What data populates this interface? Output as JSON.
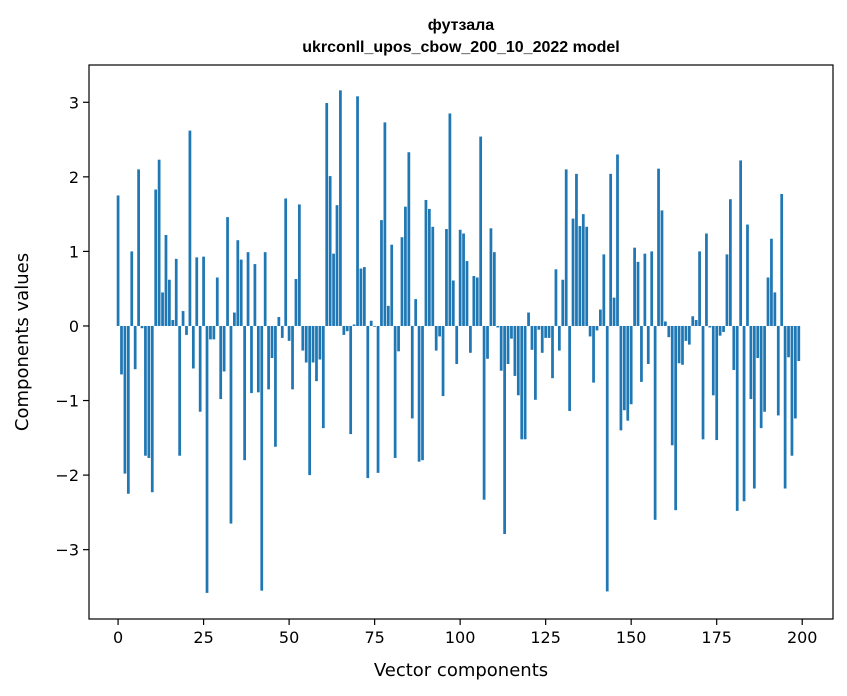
{
  "chart_data": {
    "type": "bar",
    "title_line1": "футзала",
    "title_line2": "ukrconll_upos_cbow_200_10_2022 model",
    "xlabel": "Vector components",
    "ylabel": "Components values",
    "xlim": [
      -8.5,
      209
    ],
    "ylim": [
      -3.93,
      3.5
    ],
    "xticks": [
      0,
      25,
      50,
      75,
      100,
      125,
      150,
      175,
      200
    ],
    "yticks": [
      -3,
      -2,
      -1,
      0,
      1,
      2,
      3
    ],
    "bar_color": "#1f77b4",
    "grid": false,
    "legend": "none",
    "x": [
      0,
      1,
      2,
      3,
      4,
      5,
      6,
      7,
      8,
      9,
      10,
      11,
      12,
      13,
      14,
      15,
      16,
      17,
      18,
      19,
      20,
      21,
      22,
      23,
      24,
      25,
      26,
      27,
      28,
      29,
      30,
      31,
      32,
      33,
      34,
      35,
      36,
      37,
      38,
      39,
      40,
      41,
      42,
      43,
      44,
      45,
      46,
      47,
      48,
      49,
      50,
      51,
      52,
      53,
      54,
      55,
      56,
      57,
      58,
      59,
      60,
      61,
      62,
      63,
      64,
      65,
      66,
      67,
      68,
      69,
      70,
      71,
      72,
      73,
      74,
      75,
      76,
      77,
      78,
      79,
      80,
      81,
      82,
      83,
      84,
      85,
      86,
      87,
      88,
      89,
      90,
      91,
      92,
      93,
      94,
      95,
      96,
      97,
      98,
      99,
      100,
      101,
      102,
      103,
      104,
      105,
      106,
      107,
      108,
      109,
      110,
      111,
      112,
      113,
      114,
      115,
      116,
      117,
      118,
      119,
      120,
      121,
      122,
      123,
      124,
      125,
      126,
      127,
      128,
      129,
      130,
      131,
      132,
      133,
      134,
      135,
      136,
      137,
      138,
      139,
      140,
      141,
      142,
      143,
      144,
      145,
      146,
      147,
      148,
      149,
      150,
      151,
      152,
      153,
      154,
      155,
      156,
      157,
      158,
      159,
      160,
      161,
      162,
      163,
      164,
      165,
      166,
      167,
      168,
      169,
      170,
      171,
      172,
      173,
      174,
      175,
      176,
      177,
      178,
      179,
      180,
      181,
      182,
      183,
      184,
      185,
      186,
      187,
      188,
      189,
      190,
      191,
      192,
      193,
      194,
      195,
      196,
      197,
      198,
      199
    ],
    "values": [
      1.75,
      -0.65,
      -1.98,
      -2.25,
      1.0,
      -0.58,
      2.1,
      -0.03,
      -1.74,
      -1.77,
      -2.23,
      1.83,
      2.23,
      0.45,
      1.22,
      0.62,
      0.08,
      0.9,
      -1.74,
      0.2,
      -0.12,
      2.62,
      -0.57,
      0.92,
      -1.15,
      0.93,
      -3.58,
      -0.18,
      -0.18,
      0.65,
      -0.98,
      -0.61,
      1.46,
      -2.65,
      0.18,
      1.15,
      0.89,
      -1.8,
      0.99,
      -0.9,
      0.83,
      -0.89,
      -3.55,
      0.99,
      -0.85,
      -0.43,
      -1.62,
      0.12,
      -0.16,
      1.71,
      -0.2,
      -0.85,
      0.63,
      1.63,
      -0.33,
      -0.49,
      -2.0,
      -0.49,
      -0.74,
      -0.45,
      -1.37,
      2.99,
      2.01,
      0.97,
      1.62,
      3.16,
      -0.12,
      -0.07,
      -1.45,
      0.02,
      3.08,
      0.77,
      0.79,
      -2.04,
      0.07,
      -0.01,
      -1.97,
      1.42,
      2.73,
      0.27,
      1.09,
      -1.77,
      -0.34,
      1.19,
      1.6,
      2.33,
      -1.24,
      0.36,
      -1.82,
      -1.8,
      1.69,
      1.57,
      1.33,
      -0.33,
      -0.14,
      -0.94,
      1.3,
      2.85,
      0.61,
      -0.51,
      1.29,
      1.24,
      0.87,
      -0.36,
      0.67,
      0.65,
      2.54,
      -2.33,
      -0.44,
      1.31,
      0.99,
      -0.02,
      -0.6,
      -2.79,
      -0.51,
      -0.17,
      -0.67,
      -0.93,
      -1.52,
      -1.52,
      0.18,
      -0.32,
      -0.99,
      -0.05,
      -0.36,
      -0.16,
      -0.16,
      -0.7,
      0.76,
      -0.33,
      0.62,
      2.1,
      -1.14,
      1.44,
      2.04,
      1.34,
      1.5,
      1.33,
      -0.14,
      -0.76,
      -0.06,
      0.22,
      0.96,
      -3.56,
      2.04,
      0.38,
      2.3,
      -1.4,
      -1.13,
      -1.27,
      -1.05,
      1.05,
      0.86,
      -0.75,
      0.97,
      -0.51,
      1.0,
      -2.6,
      2.11,
      1.55,
      0.06,
      -0.15,
      -1.6,
      -2.47,
      -0.5,
      -0.52,
      -0.2,
      -0.25,
      0.13,
      0.08,
      1.0,
      -1.52,
      1.24,
      -0.02,
      -0.93,
      -1.53,
      -0.13,
      -0.08,
      0.96,
      1.7,
      -0.59,
      -2.48,
      2.22,
      -2.35,
      1.36,
      -0.98,
      -2.18,
      -0.43,
      -1.37,
      -1.15,
      0.65,
      1.17,
      0.45,
      -1.2,
      1.77,
      -2.18,
      -0.42,
      -1.74,
      -1.24,
      -0.47
    ]
  }
}
